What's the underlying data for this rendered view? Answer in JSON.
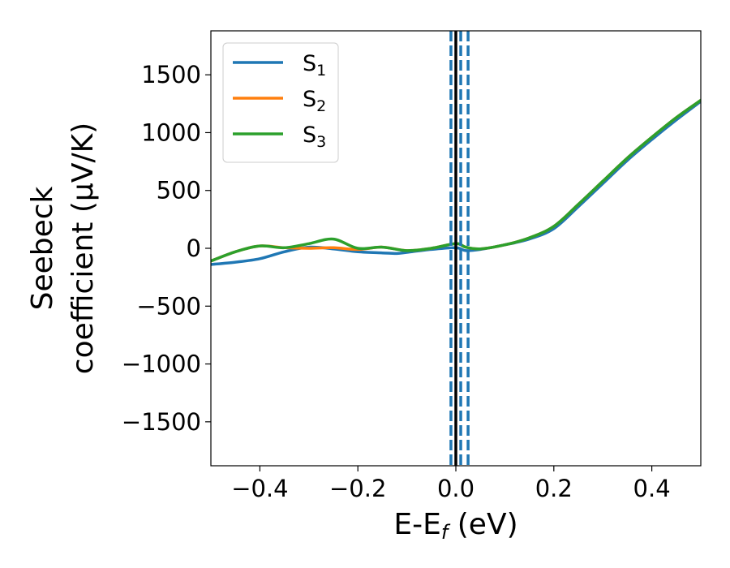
{
  "chart_data": {
    "type": "line",
    "xlabel": "E-E",
    "xlabel_sub": "f",
    "xlabel_unit": " (eV)",
    "ylabel_line1": "Seebeck",
    "ylabel_line2": "coefficient  (μV/K)",
    "xlim": [
      -0.5,
      0.5
    ],
    "ylim": [
      -1880,
      1880
    ],
    "x_ticks": [
      -0.4,
      -0.2,
      0.0,
      0.2,
      0.4
    ],
    "x_tick_labels": [
      "−0.4",
      "−0.2",
      "0.0",
      "0.2",
      "0.4"
    ],
    "y_ticks": [
      -1500,
      -1000,
      -500,
      0,
      500,
      1000,
      1500
    ],
    "y_tick_labels": [
      "−1500",
      "−1000",
      "−500",
      "0",
      "500",
      "1000",
      "1500"
    ],
    "grid": false,
    "legend_position": "top-left",
    "series": [
      {
        "name": "S",
        "subscript": "1",
        "color": "#1f77b4",
        "x": [
          -0.5,
          -0.45,
          -0.4,
          -0.35,
          -0.3,
          -0.25,
          -0.2,
          -0.15,
          -0.12,
          -0.1,
          -0.05,
          0.0,
          0.02,
          0.05,
          0.1,
          0.15,
          0.2,
          0.25,
          0.3,
          0.35,
          0.4,
          0.45,
          0.5
        ],
        "y": [
          -140,
          -120,
          -90,
          -30,
          10,
          -5,
          -30,
          -40,
          -45,
          -35,
          -10,
          5,
          -20,
          -10,
          30,
          80,
          170,
          360,
          560,
          760,
          940,
          1110,
          1270
        ]
      },
      {
        "name": "S",
        "subscript": "2",
        "color": "#ff7f0e",
        "x": [
          -0.5,
          -0.45,
          -0.4,
          -0.35,
          -0.3,
          -0.25,
          -0.2,
          -0.15,
          -0.1,
          -0.05,
          0.0,
          0.02,
          0.05,
          0.1,
          0.15,
          0.2,
          0.25,
          0.3,
          0.35,
          0.4,
          0.45,
          0.5
        ],
        "y": [
          -110,
          -30,
          20,
          5,
          0,
          5,
          -10,
          10,
          -20,
          0,
          40,
          10,
          -5,
          30,
          90,
          190,
          380,
          580,
          780,
          960,
          1130,
          1280
        ]
      },
      {
        "name": "S",
        "subscript": "3",
        "color": "#2ca02c",
        "x": [
          -0.5,
          -0.45,
          -0.4,
          -0.35,
          -0.3,
          -0.25,
          -0.2,
          -0.15,
          -0.1,
          -0.05,
          0.0,
          0.02,
          0.05,
          0.1,
          0.15,
          0.2,
          0.25,
          0.3,
          0.35,
          0.4,
          0.45,
          0.5
        ],
        "y": [
          -110,
          -30,
          20,
          5,
          40,
          80,
          0,
          10,
          -20,
          0,
          40,
          10,
          -5,
          30,
          90,
          190,
          380,
          580,
          780,
          960,
          1130,
          1280
        ]
      }
    ],
    "vertical_lines": [
      {
        "x": 0.0,
        "color": "#000000",
        "style": "solid"
      },
      {
        "x": -0.01,
        "color": "#1f77b4",
        "style": "dashed"
      },
      {
        "x": 0.01,
        "color": "#1f77b4",
        "style": "dashed"
      },
      {
        "x": 0.025,
        "color": "#1f77b4",
        "style": "dashed"
      }
    ]
  }
}
